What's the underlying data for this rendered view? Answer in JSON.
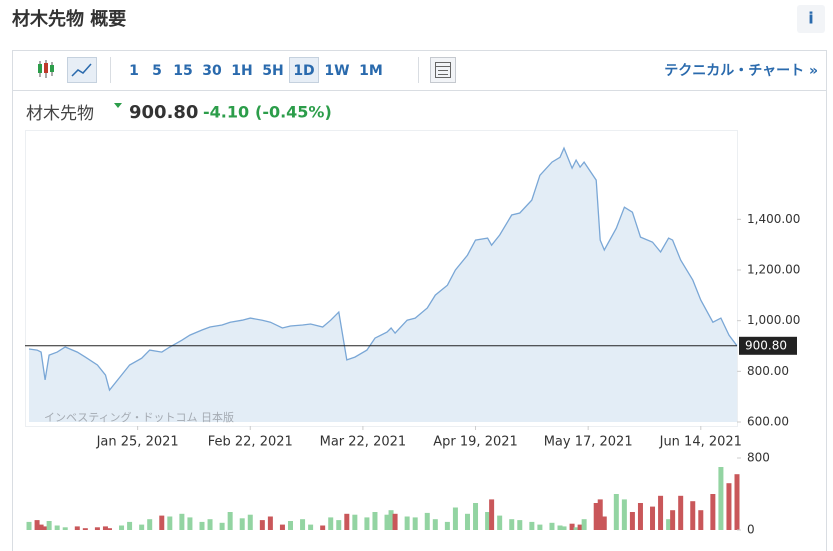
{
  "header": {
    "title": "材木先物 概要",
    "info": "i"
  },
  "toolbar": {
    "intervals": [
      "1",
      "5",
      "15",
      "30",
      "1H",
      "5H",
      "1D",
      "1W",
      "1M"
    ],
    "selected": "1D",
    "link": "テクニカル・チャート »"
  },
  "quote": {
    "name": "材木先物",
    "last": "900.80",
    "change": "-4.10",
    "change_pct": "(-0.45%)"
  },
  "watermark": {
    "brand": "Investing.com",
    "sub": "インベスティング・ドットコム 日本版"
  },
  "chart_data": [
    {
      "type": "area",
      "color": "#7aa7d6",
      "fill": "#e3edf6",
      "x": [
        "2020-12-29",
        "2020-12-31",
        "2021-01-01",
        "2021-01-02",
        "2021-01-03",
        "2021-01-05",
        "2021-01-07",
        "2021-01-10",
        "2021-01-12",
        "2021-01-15",
        "2021-01-17",
        "2021-01-18",
        "2021-01-21",
        "2021-01-23",
        "2021-01-26",
        "2021-01-28",
        "2021-01-31",
        "2021-02-02",
        "2021-02-05",
        "2021-02-07",
        "2021-02-10",
        "2021-02-12",
        "2021-02-15",
        "2021-02-17",
        "2021-02-20",
        "2021-02-22",
        "2021-02-25",
        "2021-02-27",
        "2021-03-02",
        "2021-03-04",
        "2021-03-07",
        "2021-03-09",
        "2021-03-12",
        "2021-03-14",
        "2021-03-16",
        "2021-03-18",
        "2021-03-20",
        "2021-03-23",
        "2021-03-25",
        "2021-03-28",
        "2021-03-29",
        "2021-03-30",
        "2021-04-02",
        "2021-04-04",
        "2021-04-07",
        "2021-04-09",
        "2021-04-12",
        "2021-04-14",
        "2021-04-17",
        "2021-04-19",
        "2021-04-22",
        "2021-04-23",
        "2021-04-25",
        "2021-04-28",
        "2021-04-30",
        "2021-05-03",
        "2021-05-05",
        "2021-05-08",
        "2021-05-10",
        "2021-05-11",
        "2021-05-13",
        "2021-05-14",
        "2021-05-15",
        "2021-05-16",
        "2021-05-19",
        "2021-05-20",
        "2021-05-21",
        "2021-05-24",
        "2021-05-26",
        "2021-05-28",
        "2021-05-30",
        "2021-06-02",
        "2021-06-04",
        "2021-06-06",
        "2021-06-07",
        "2021-06-09",
        "2021-06-12",
        "2021-06-14",
        "2021-06-17",
        "2021-06-19",
        "2021-06-21",
        "2021-06-23"
      ],
      "values": [
        888,
        884,
        876,
        766,
        864,
        876,
        896,
        876,
        856,
        825,
        785,
        726,
        785,
        825,
        852,
        884,
        876,
        896,
        923,
        943,
        963,
        975,
        983,
        994,
        1002,
        1010,
        1002,
        994,
        971,
        979,
        983,
        987,
        975,
        1002,
        1034,
        845,
        856,
        884,
        931,
        955,
        971,
        951,
        1002,
        1010,
        1050,
        1101,
        1140,
        1200,
        1259,
        1318,
        1326,
        1298,
        1338,
        1417,
        1425,
        1476,
        1574,
        1626,
        1645,
        1681,
        1602,
        1634,
        1606,
        1626,
        1555,
        1318,
        1279,
        1365,
        1448,
        1428,
        1330,
        1310,
        1271,
        1326,
        1318,
        1239,
        1160,
        1081,
        994,
        1010,
        943,
        900.8
      ],
      "xlim": [
        "2020-12-28",
        "2021-06-23"
      ],
      "xticks": [
        {
          "value": "2021-01-25",
          "label": "Jan 25, 2021"
        },
        {
          "value": "2021-02-22",
          "label": "Feb 22, 2021"
        },
        {
          "value": "2021-03-22",
          "label": "Mar 22, 2021"
        },
        {
          "value": "2021-04-19",
          "label": "Apr 19, 2021"
        },
        {
          "value": "2021-05-17",
          "label": "May 17, 2021"
        },
        {
          "value": "2021-06-14",
          "label": "Jun 14, 2021"
        }
      ],
      "ylim": [
        600,
        1725
      ],
      "yticks": [
        {
          "value": 600,
          "label": "600.00"
        },
        {
          "value": 800,
          "label": "800.00"
        },
        {
          "value": 1000,
          "label": "1,000.00"
        },
        {
          "value": 1200,
          "label": "1,200.00"
        },
        {
          "value": 1400,
          "label": "1,400.00"
        }
      ],
      "reference_line": {
        "value": 900.8,
        "label": "900.80"
      }
    },
    {
      "type": "volume",
      "up_color": "#93d4a2",
      "down_color": "#c9575a",
      "values": [
        90,
        110,
        60,
        40,
        100,
        50,
        30,
        40,
        20,
        30,
        40,
        20,
        50,
        90,
        60,
        120,
        160,
        150,
        180,
        140,
        90,
        120,
        80,
        200,
        130,
        170,
        110,
        150,
        60,
        100,
        120,
        60,
        50,
        140,
        110,
        180,
        170,
        140,
        200,
        170,
        220,
        180,
        150,
        140,
        190,
        120,
        90,
        250,
        180,
        300,
        200,
        340,
        160,
        120,
        110,
        90,
        60,
        80,
        50,
        40,
        70,
        30,
        60,
        120,
        300,
        340,
        150,
        400,
        340,
        200,
        300,
        260,
        380,
        120,
        220,
        380,
        320,
        220,
        400,
        700,
        520,
        620
      ],
      "ylim": [
        0,
        800
      ],
      "yticks": [
        0,
        800
      ]
    }
  ]
}
